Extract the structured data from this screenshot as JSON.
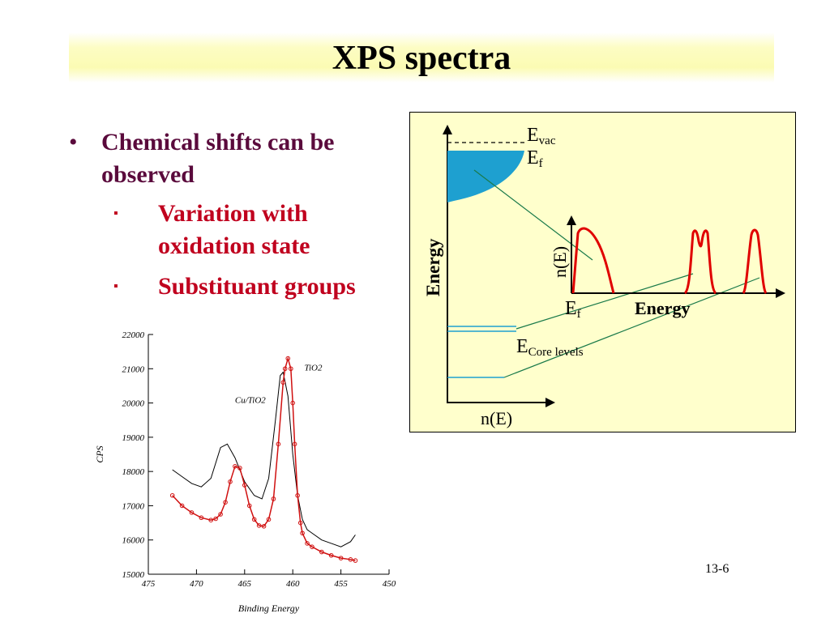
{
  "slide": {
    "title": "XPS spectra",
    "bullets": [
      {
        "text": "Chemical shifts can be observed",
        "sub": [
          "Variation with oxidation state",
          "Substituant groups"
        ]
      }
    ],
    "bullet_glyph": "•",
    "sub_bullet_glyph": "▪",
    "slide_number": "13-6"
  },
  "energy_diagram": {
    "background": "#ffffcc",
    "fill_color": "#1ea0d0",
    "peak_color": "#e00000",
    "labels": {
      "evac_main": "E",
      "evac_sub": "vac",
      "ef_main": "E",
      "ef_sub": "f",
      "energy_vertical": "Energy",
      "ne_vertical": "n(E)",
      "ef2_main": "E",
      "ef2_sub": "f",
      "energy_horizontal": "Energy",
      "ecore_main": "E",
      "ecore_sub": "Core levels",
      "ne_bottom": "n(E)"
    }
  },
  "chart_data": {
    "type": "line",
    "xlabel": "Binding Energy",
    "ylabel": "CPS",
    "x_ticks": [
      "475",
      "470",
      "465",
      "460",
      "455",
      "450"
    ],
    "y_ticks": [
      "15000",
      "16000",
      "17000",
      "18000",
      "19000",
      "20000",
      "21000",
      "22000"
    ],
    "xlim": [
      475,
      450
    ],
    "ylim": [
      15000,
      22000
    ],
    "series": [
      {
        "name": "Cu/TiO2",
        "color": "#000000",
        "x": [
          472.5,
          471.5,
          470.5,
          469.5,
          468.5,
          467.5,
          466.8,
          466,
          465,
          464,
          463.2,
          462.5,
          461.8,
          461.3,
          461,
          460.5,
          460,
          459.5,
          459,
          458.5,
          458,
          457,
          456,
          455,
          454,
          453.5
        ],
        "y": [
          18050,
          17850,
          17650,
          17550,
          17800,
          18700,
          18800,
          18400,
          17700,
          17300,
          17200,
          17800,
          19500,
          20800,
          20900,
          20200,
          18500,
          17300,
          16600,
          16300,
          16200,
          16000,
          15900,
          15800,
          15950,
          16150
        ]
      },
      {
        "name": "TiO2",
        "color": "#d01010",
        "x": [
          472.5,
          471.5,
          470.5,
          469.5,
          468.5,
          468,
          467.5,
          467,
          466.5,
          466,
          465.5,
          465,
          464.5,
          464,
          463.5,
          463,
          462.5,
          462,
          461.5,
          461,
          460.8,
          460.5,
          460.2,
          460,
          459.8,
          459.5,
          459.2,
          459,
          458.5,
          458,
          457,
          456,
          455,
          454,
          453.5
        ],
        "y": [
          17300,
          17000,
          16800,
          16650,
          16580,
          16620,
          16750,
          17100,
          17700,
          18150,
          18100,
          17600,
          17000,
          16600,
          16420,
          16400,
          16600,
          17200,
          18800,
          20600,
          21000,
          21300,
          21000,
          20000,
          18800,
          17300,
          16500,
          16200,
          15900,
          15800,
          15650,
          15550,
          15470,
          15430,
          15400
        ]
      }
    ]
  }
}
